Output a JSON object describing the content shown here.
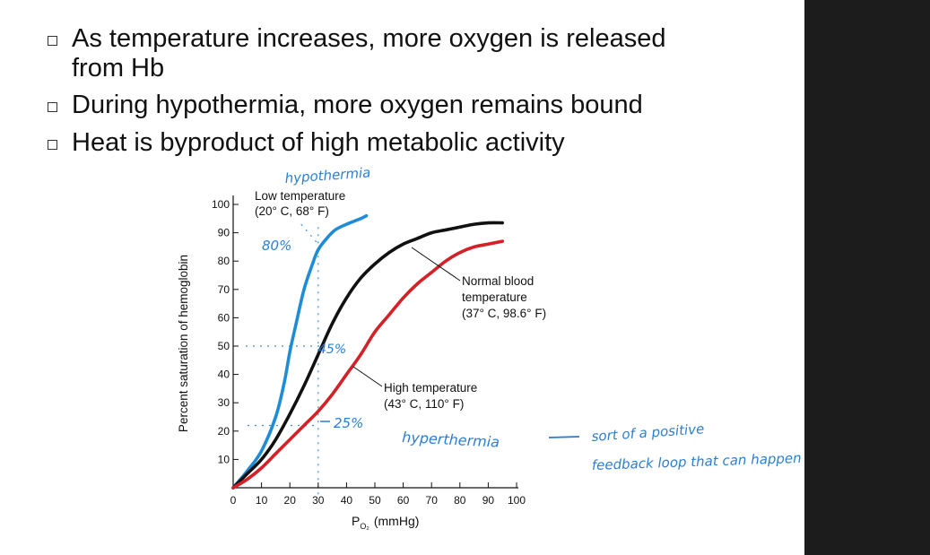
{
  "bullets": [
    {
      "text_line1": "As temperature increases, more oxygen is released",
      "text_line2": "from Hb"
    },
    {
      "text_line1": "During hypothermia, more oxygen remains bound"
    },
    {
      "text_line1": "Heat is byproduct of high metabolic activity"
    }
  ],
  "chart_data": {
    "type": "line",
    "title": "",
    "xlabel": "P",
    "xlabel_sub": "O₂",
    "xlabel_unit": "(mmHg)",
    "ylabel": "Percent saturation of hemoglobin",
    "xlim": [
      0,
      100
    ],
    "ylim": [
      0,
      100
    ],
    "x_ticks": [
      "0",
      "10",
      "20",
      "30",
      "40",
      "50",
      "60",
      "70",
      "80",
      "90",
      "100"
    ],
    "y_ticks": [
      "10",
      "20",
      "30",
      "40",
      "50",
      "60",
      "70",
      "80",
      "90",
      "100"
    ],
    "series": [
      {
        "key": "low",
        "color": "#1f8dd6",
        "label_lines": [
          "Low temperature",
          "(20° C, 68° F)"
        ],
        "x": [
          0,
          5,
          10,
          15,
          18,
          20,
          22,
          25,
          28,
          30,
          33,
          36,
          40,
          45,
          47
        ],
        "y": [
          0,
          6,
          13,
          25,
          37,
          48,
          57,
          70,
          79,
          84,
          88,
          91,
          93,
          95,
          96
        ]
      },
      {
        "key": "normal",
        "color": "#111111",
        "label_lines": [
          "Normal blood",
          "temperature",
          "(37° C, 98.6° F)"
        ],
        "x": [
          0,
          5,
          10,
          15,
          20,
          25,
          30,
          35,
          40,
          45,
          50,
          55,
          60,
          65,
          70,
          75,
          80,
          85,
          90,
          95
        ],
        "y": [
          0,
          5,
          10,
          17,
          26,
          36,
          47,
          58,
          67,
          74,
          79,
          83,
          86,
          88,
          90,
          91,
          92,
          93,
          93.5,
          93.5
        ]
      },
      {
        "key": "high",
        "color": "#d42027",
        "label_lines": [
          "High temperature",
          "(43° C, 110° F)"
        ],
        "x": [
          0,
          5,
          10,
          15,
          20,
          25,
          30,
          35,
          40,
          45,
          50,
          55,
          60,
          65,
          70,
          75,
          80,
          85,
          90,
          95
        ],
        "y": [
          0,
          3,
          7,
          12,
          17,
          22,
          27,
          33,
          40,
          47,
          55,
          61,
          67,
          72,
          76,
          80,
          83,
          85,
          86,
          87
        ]
      }
    ]
  },
  "handwritten": {
    "hypothermia_label": "hypothermia",
    "pct_80": "80%",
    "pct_45": "45%",
    "pct_25": "25%",
    "hyperthermia_label": "hyperthermia",
    "note_line1": "sort of a positive",
    "note_line2": "feedback loop that can happen"
  }
}
